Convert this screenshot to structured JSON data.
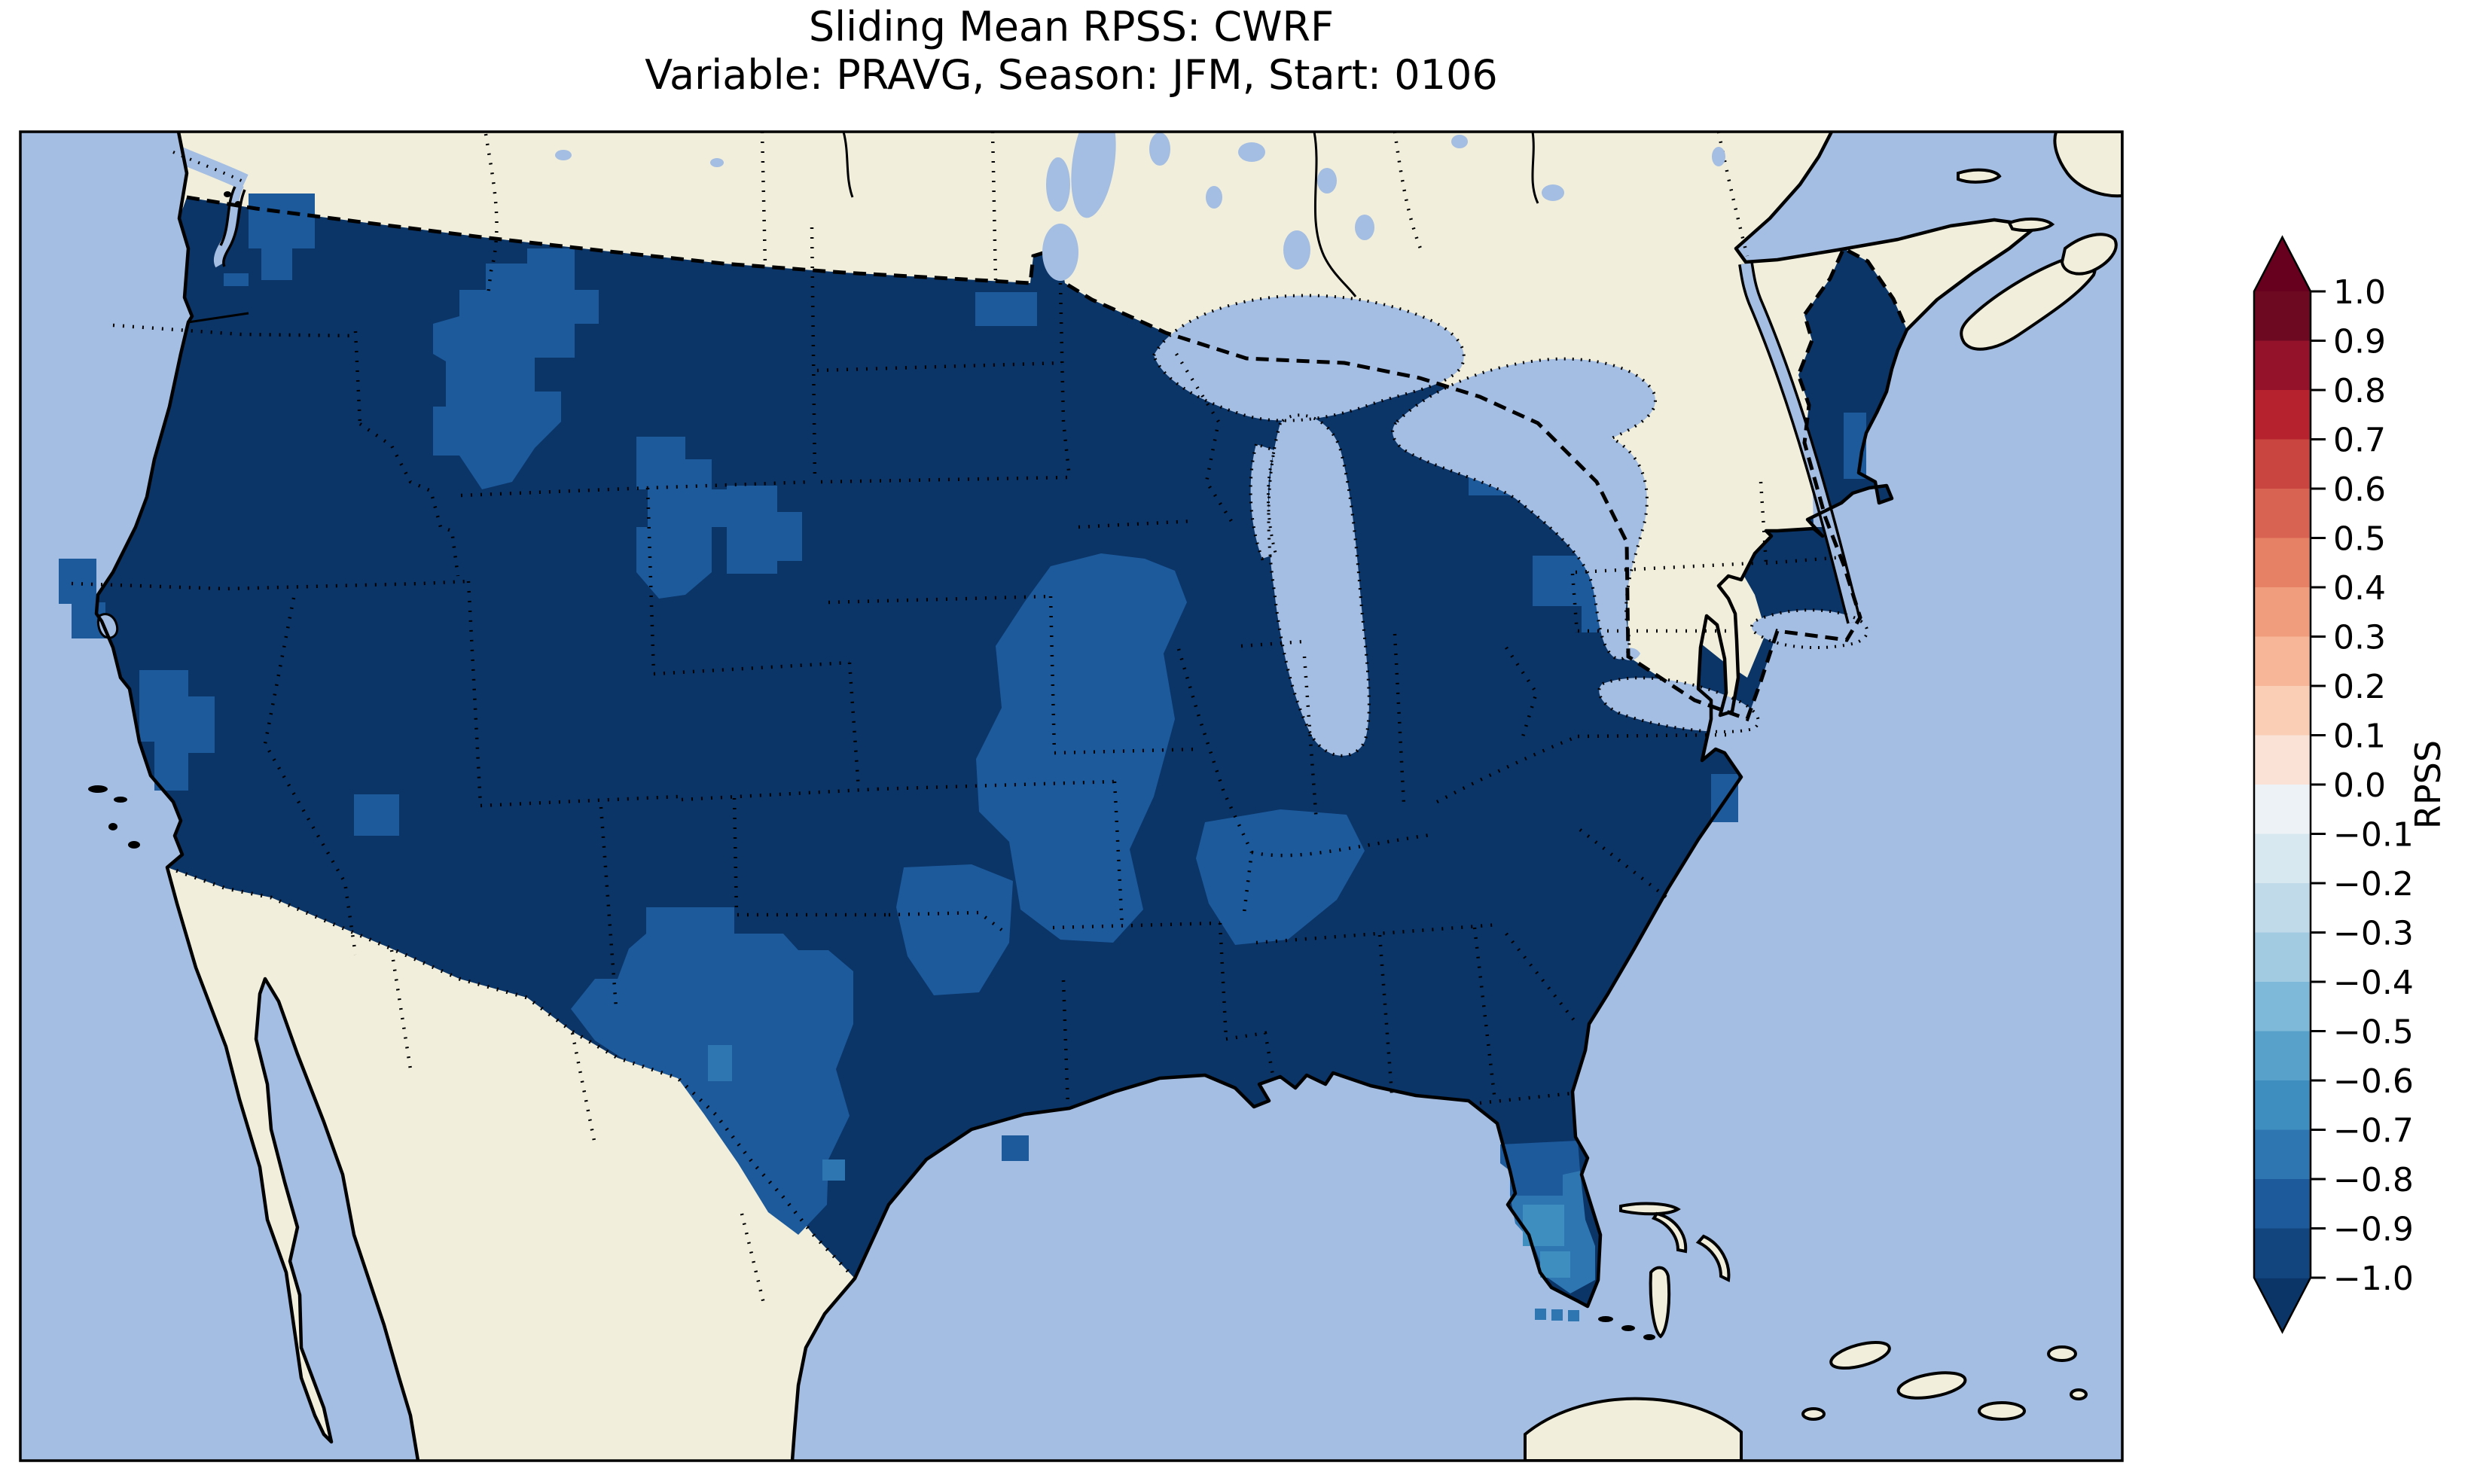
{
  "title": {
    "line1": "Sliding Mean RPSS: CWRF",
    "line2": "Variable: PRAVG, Season: JFM, Start: 0106"
  },
  "colorbar": {
    "label": "RPSS",
    "orientation": "vertical",
    "tick_labels": [
      "1.0",
      "0.9",
      "0.8",
      "0.7",
      "0.6",
      "0.5",
      "0.4",
      "0.3",
      "0.2",
      "0.1",
      "0.0",
      "−0.1",
      "−0.2",
      "−0.3",
      "−0.4",
      "−0.5",
      "−0.6",
      "−0.7",
      "−0.8",
      "−0.9",
      "−1.0"
    ],
    "segment_colors_top_to_bottom": [
      "#6d0a21",
      "#94122a",
      "#b7222f",
      "#c94640",
      "#d96353",
      "#e68165",
      "#f09d7d",
      "#f6b697",
      "#facdb5",
      "#fae3d6",
      "#ecf2f5",
      "#d8e8f1",
      "#c0daea",
      "#a2cbe2",
      "#7fb9d9",
      "#58a1cb",
      "#3e8ec0",
      "#2e76b2",
      "#1c5a9c",
      "#12457e"
    ],
    "over_arrow_color": "#67001f",
    "under_arrow_color": "#0b3467",
    "outline_color": "#000000"
  },
  "map": {
    "ocean_color": "#a4bde2",
    "land_color": "#f1efdb",
    "lake_color": "#a4bde2",
    "coastline_color": "#000000",
    "country_border_style": "dashed",
    "state_border_style": "dotted",
    "data_bin_colors": {
      "below_-1.0": "#0b3467",
      "-1.0_to_-0.9": "#12457e",
      "-0.9_to_-0.8": "#1c5a9c",
      "-0.8_to_-0.7": "#2e76b2",
      "-0.7_to_-0.6": "#3e8ec0"
    },
    "regions_visible": [
      "United States (gridded RPSS field)",
      "Canada",
      "Mexico",
      "Great Lakes",
      "Nova Scotia",
      "Bahamas",
      "Cuba",
      "Baja California"
    ]
  },
  "chart_data": {
    "type": "heatmap",
    "title": "Sliding Mean RPSS: CWRF",
    "subtitle": "Variable: PRAVG, Season: JFM, Start: 0106",
    "colorbar_label": "RPSS",
    "colorbar_range": [
      -1.0,
      1.0
    ],
    "colorbar_tick_step": 0.1,
    "colormap": "RdBu diverging, 20 discrete bins, extend arrows both ends",
    "field_summary": [
      {
        "region": "Most of the contiguous United States",
        "rpss": "below −0.9"
      },
      {
        "region": "Idaho / western Montana patch",
        "rpss": "−0.9 to −0.8"
      },
      {
        "region": "Wyoming and central plains (NE/KS/IA/MO/IL) patches",
        "rpss": "−0.9 to −0.8"
      },
      {
        "region": "West and south Texas",
        "rpss": "−0.9 to −0.8"
      },
      {
        "region": "Kentucky / Tennessee patch",
        "rpss": "−0.9 to −0.8"
      },
      {
        "region": "Arkansas / Louisiana patch",
        "rpss": "−0.9 to −0.8"
      },
      {
        "region": "Central Florida peninsula",
        "rpss": "−0.8 to −0.6"
      },
      {
        "region": "Washington coast and NY/PA patches",
        "rpss": "−0.9 to −0.8"
      },
      {
        "region": "Three grid cells south of Florida Keys",
        "rpss": "−0.8 to −0.7"
      }
    ]
  }
}
